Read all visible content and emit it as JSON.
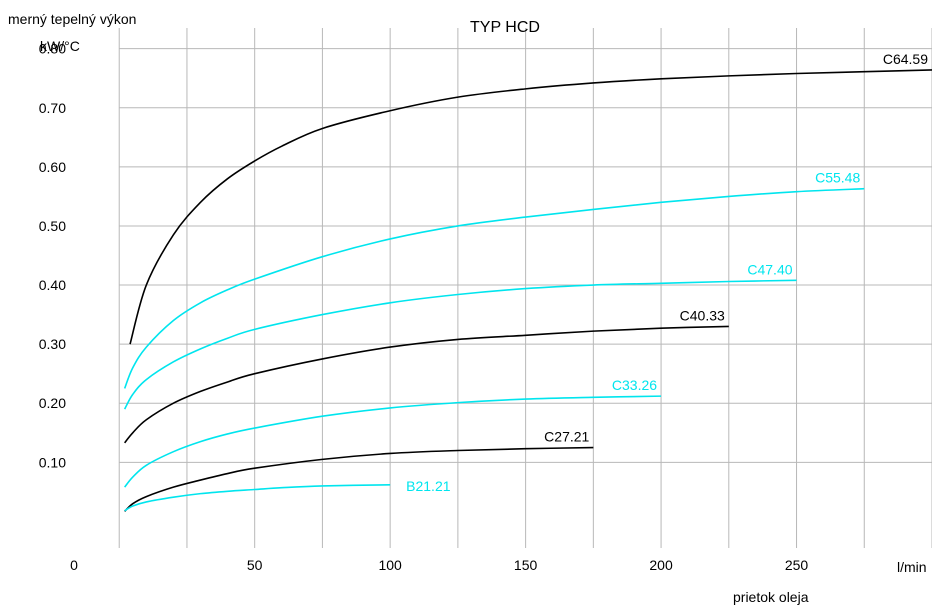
{
  "chart_data": {
    "type": "line",
    "title": "TYP HCD",
    "ylabel": [
      "merný tepelný výkon",
      "kW/°C"
    ],
    "xlabel_unit": "l/min",
    "xlabel": "prietok oleja",
    "xlim": [
      -13,
      300
    ],
    "ylim": [
      -0.045,
      0.835
    ],
    "x_ticks": [
      0,
      50,
      100,
      150,
      200,
      250
    ],
    "y_ticks": [
      0.1,
      0.2,
      0.3,
      0.4,
      0.5,
      0.6,
      0.7,
      0.8
    ],
    "y_tick_labels": [
      "0.10",
      "0.20",
      "0.30",
      "0.40",
      "0.50",
      "0.60",
      "0.70",
      "0.80"
    ],
    "x_tick_labels": [
      "0",
      "50",
      "100",
      "150",
      "200",
      "250"
    ],
    "grid": true,
    "series": [
      {
        "name": "C64.59",
        "color": "#000000",
        "x": [
          4,
          10,
          20,
          30,
          40,
          50,
          60,
          75,
          100,
          125,
          150,
          175,
          200,
          225,
          250,
          275,
          300
        ],
        "y": [
          0.3,
          0.4,
          0.485,
          0.54,
          0.58,
          0.61,
          0.635,
          0.665,
          0.695,
          0.718,
          0.732,
          0.742,
          0.749,
          0.754,
          0.758,
          0.761,
          0.764
        ]
      },
      {
        "name": "C55.48",
        "color": "#00e5ee",
        "x": [
          2,
          5,
          10,
          20,
          30,
          40,
          50,
          75,
          100,
          125,
          150,
          175,
          200,
          225,
          250,
          275
        ],
        "y": [
          0.225,
          0.26,
          0.295,
          0.34,
          0.37,
          0.392,
          0.41,
          0.448,
          0.478,
          0.5,
          0.515,
          0.528,
          0.54,
          0.55,
          0.558,
          0.563
        ]
      },
      {
        "name": "C47.40",
        "color": "#00e5ee",
        "x": [
          2,
          5,
          10,
          20,
          30,
          40,
          50,
          75,
          100,
          125,
          150,
          175,
          200,
          225,
          250
        ],
        "y": [
          0.19,
          0.215,
          0.24,
          0.27,
          0.292,
          0.31,
          0.325,
          0.35,
          0.37,
          0.384,
          0.394,
          0.4,
          0.403,
          0.406,
          0.408
        ]
      },
      {
        "name": "C40.33",
        "color": "#000000",
        "x": [
          2,
          5,
          10,
          20,
          30,
          40,
          50,
          75,
          100,
          125,
          150,
          175,
          200,
          225
        ],
        "y": [
          0.133,
          0.15,
          0.172,
          0.2,
          0.22,
          0.236,
          0.25,
          0.275,
          0.295,
          0.308,
          0.315,
          0.322,
          0.327,
          0.33
        ]
      },
      {
        "name": "C33.26",
        "color": "#00e5ee",
        "x": [
          2,
          5,
          10,
          20,
          30,
          40,
          50,
          75,
          100,
          125,
          150,
          175,
          200
        ],
        "y": [
          0.058,
          0.075,
          0.095,
          0.118,
          0.135,
          0.148,
          0.158,
          0.178,
          0.192,
          0.201,
          0.207,
          0.21,
          0.212
        ]
      },
      {
        "name": "C27.21",
        "color": "#000000",
        "x": [
          2,
          5,
          10,
          20,
          30,
          40,
          50,
          75,
          100,
          125,
          150,
          175
        ],
        "y": [
          0.017,
          0.03,
          0.042,
          0.058,
          0.07,
          0.081,
          0.09,
          0.105,
          0.115,
          0.12,
          0.123,
          0.125
        ]
      },
      {
        "name": "B21.21",
        "color": "#00e5ee",
        "x": [
          2,
          5,
          10,
          20,
          30,
          40,
          50,
          60,
          75,
          100
        ],
        "y": [
          0.018,
          0.026,
          0.033,
          0.041,
          0.047,
          0.051,
          0.054,
          0.057,
          0.06,
          0.062
        ]
      }
    ]
  }
}
